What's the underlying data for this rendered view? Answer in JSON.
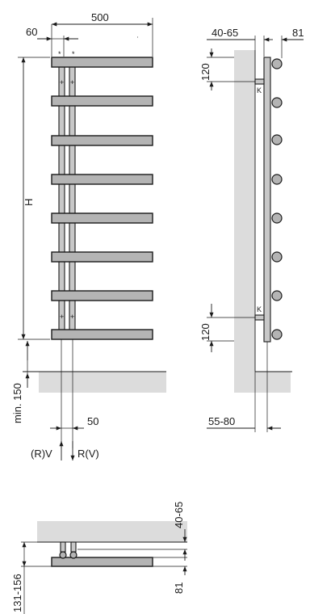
{
  "front_view": {
    "width_label": "500",
    "offset_label": "60",
    "star_mark": "*",
    "plus_mark": "+",
    "height_label": "H",
    "floor_gap_label": "min. 150",
    "pipe_spacing_label": "50",
    "flow_left_label": "(R)V",
    "flow_right_label": "R(V)"
  },
  "side_view": {
    "wall_distance_label": "40-65",
    "depth_label": "81",
    "top_bracket_label": "120",
    "bottom_bracket_label": "120",
    "bracket_mark": "K",
    "bottom_distance_label": "55-80"
  },
  "top_view": {
    "wall_distance_label": "40-65",
    "depth_label": "81",
    "total_label": "131-156"
  }
}
